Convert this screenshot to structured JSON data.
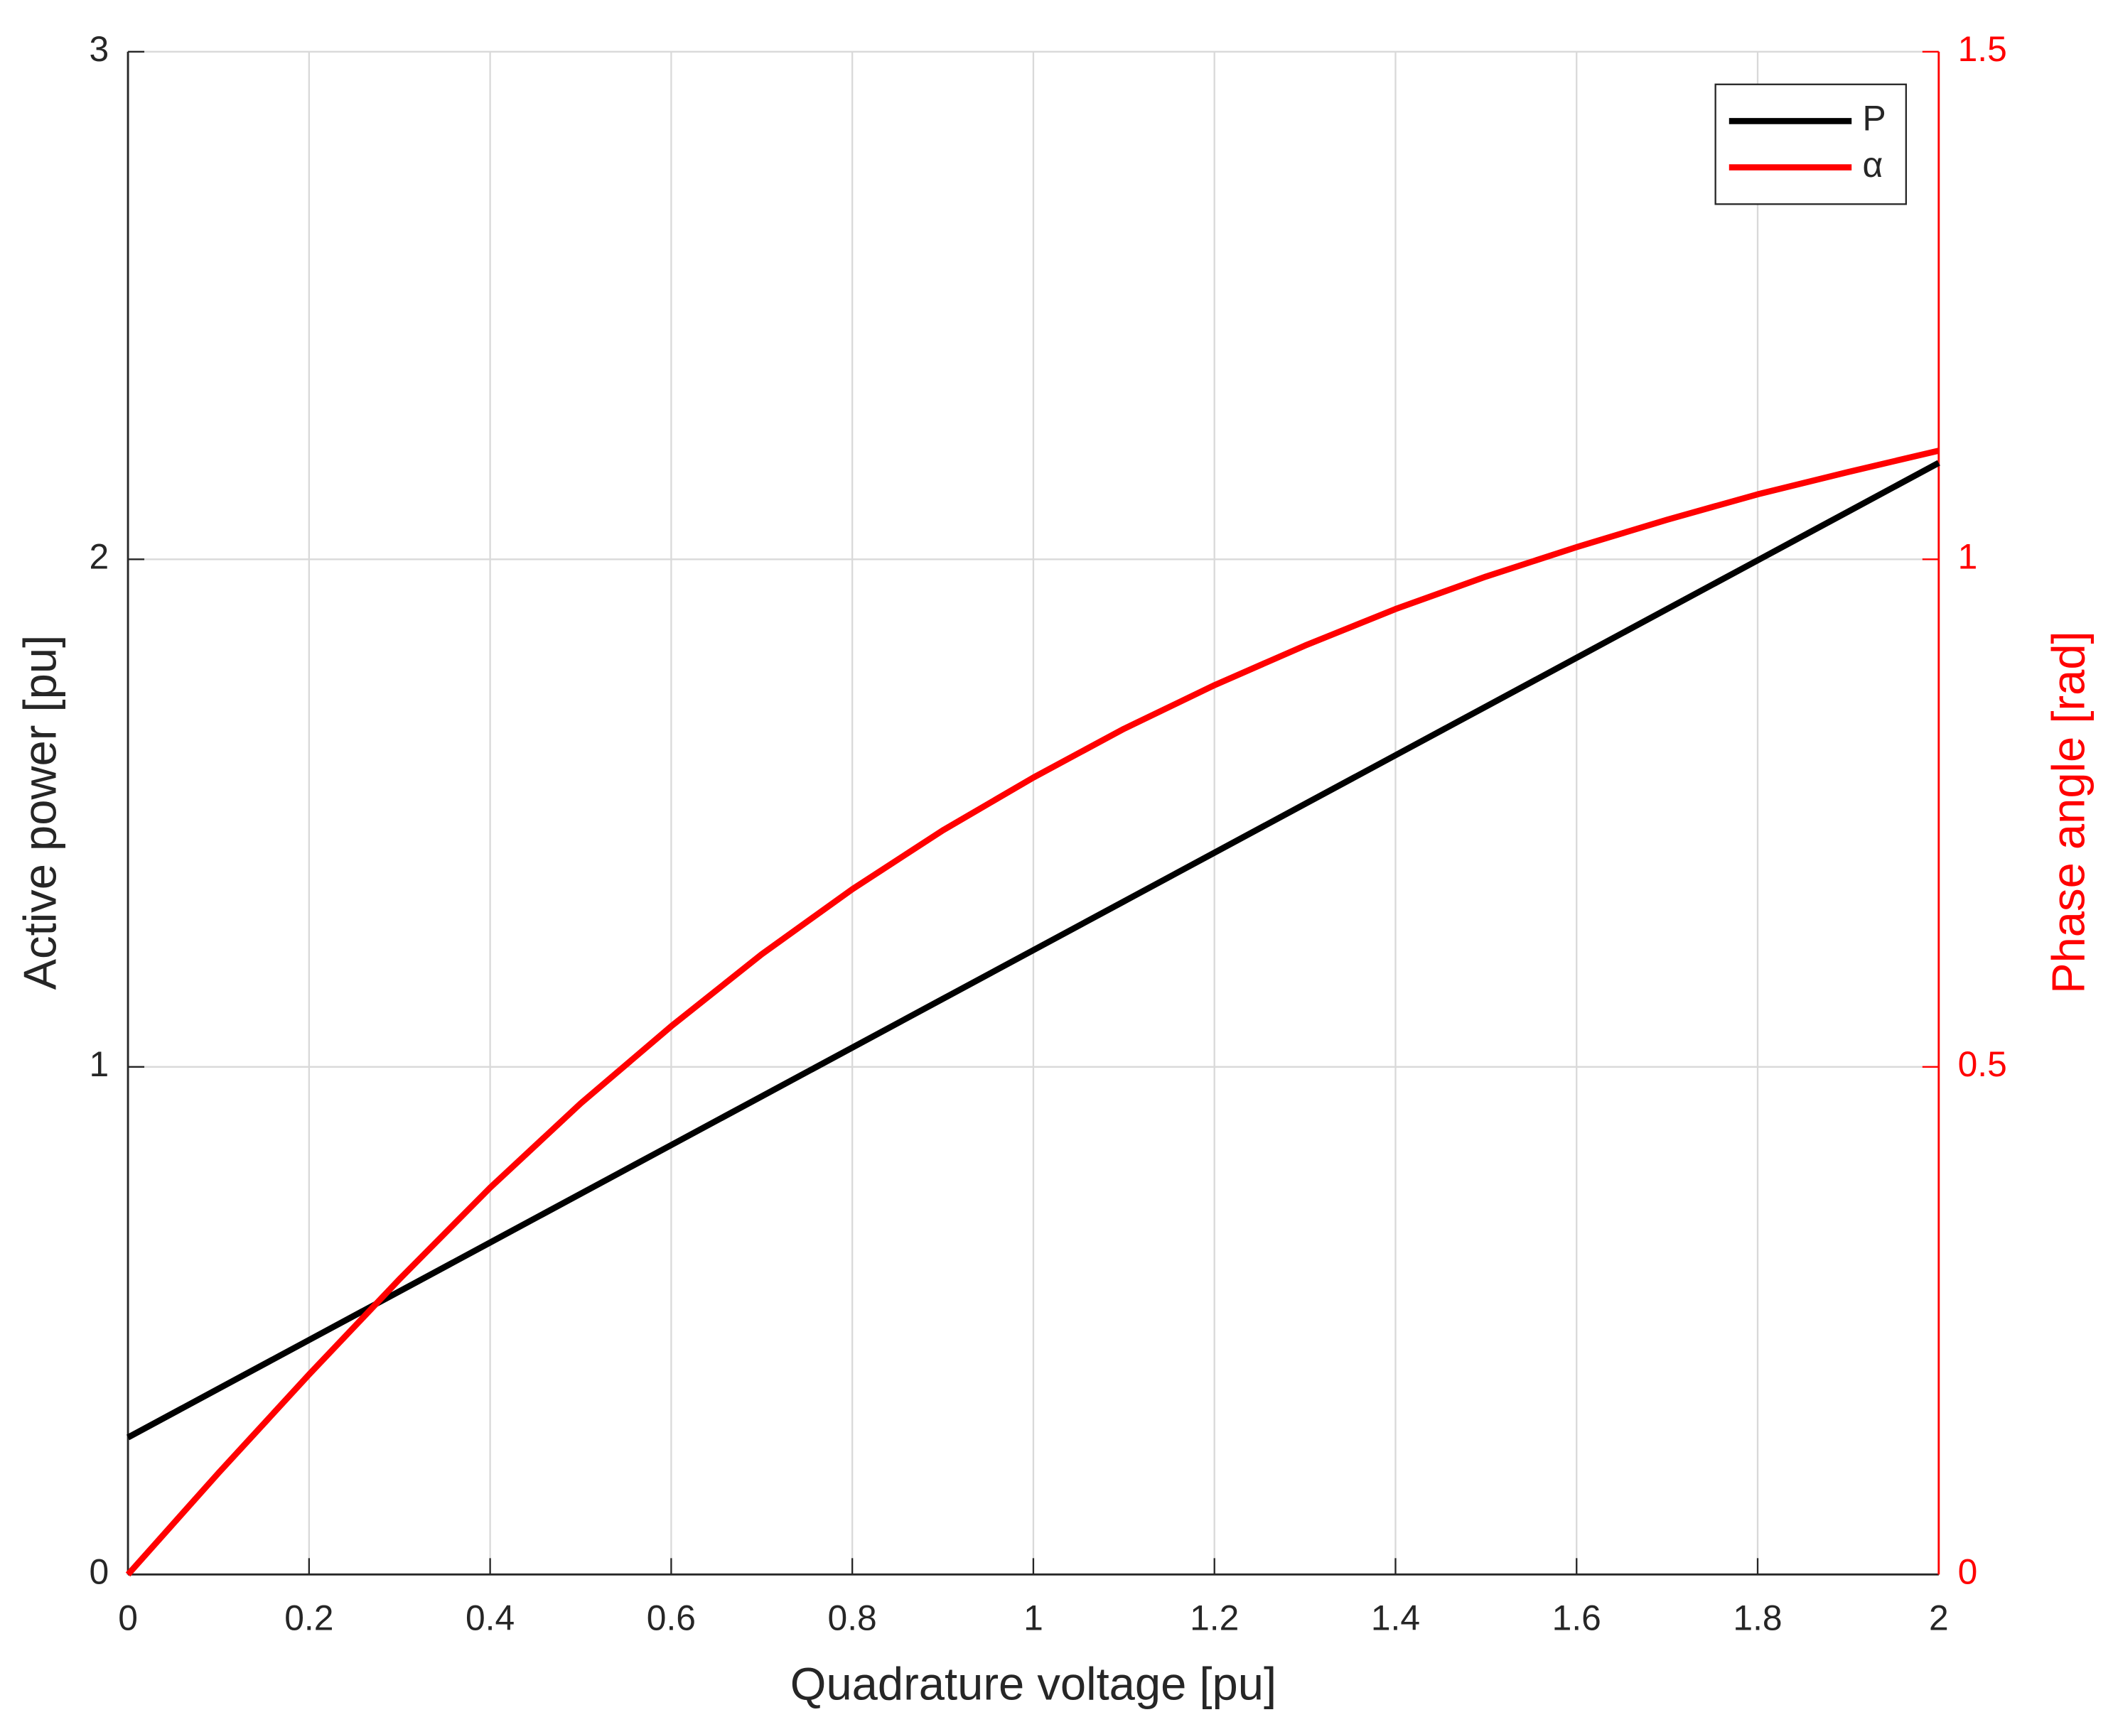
{
  "chart_data": {
    "type": "line",
    "x_label": "Quadrature voltage [pu]",
    "y_label": "Active power [pu]",
    "y2_label": "Phase angle [rad]",
    "y2_color": "#ff0000",
    "x": [
      0,
      0.1,
      0.2,
      0.3,
      0.4,
      0.5,
      0.6,
      0.7,
      0.8,
      0.9,
      1,
      1.1,
      1.2,
      1.3,
      1.4,
      1.5,
      1.6,
      1.7,
      1.8,
      1.9,
      2
    ],
    "series": [
      {
        "name": "P",
        "color": "#000000",
        "axis": "y",
        "values": [
          0.27,
          0.366,
          0.462,
          0.558,
          0.654,
          0.75,
          0.846,
          0.942,
          1.038,
          1.134,
          1.23,
          1.326,
          1.422,
          1.518,
          1.614,
          1.71,
          1.806,
          1.902,
          1.998,
          2.094,
          2.19
        ]
      },
      {
        "name": "α",
        "color": "#ff0000",
        "axis": "y2",
        "values": [
          0,
          0.1,
          0.197,
          0.291,
          0.381,
          0.464,
          0.54,
          0.611,
          0.675,
          0.733,
          0.785,
          0.833,
          0.876,
          0.915,
          0.951,
          0.983,
          1.012,
          1.039,
          1.064,
          1.086,
          1.107
        ]
      }
    ],
    "xlim": [
      0,
      2
    ],
    "xticks": [
      0,
      0.2,
      0.4,
      0.6,
      0.8,
      1,
      1.2,
      1.4,
      1.6,
      1.8,
      2
    ],
    "ylim": [
      0,
      3
    ],
    "yticks": [
      0,
      1,
      2,
      3
    ],
    "y2lim": [
      0,
      1.5
    ],
    "y2ticks": [
      0,
      0.5,
      1,
      1.5
    ],
    "grid": true,
    "legend": "top-right"
  }
}
